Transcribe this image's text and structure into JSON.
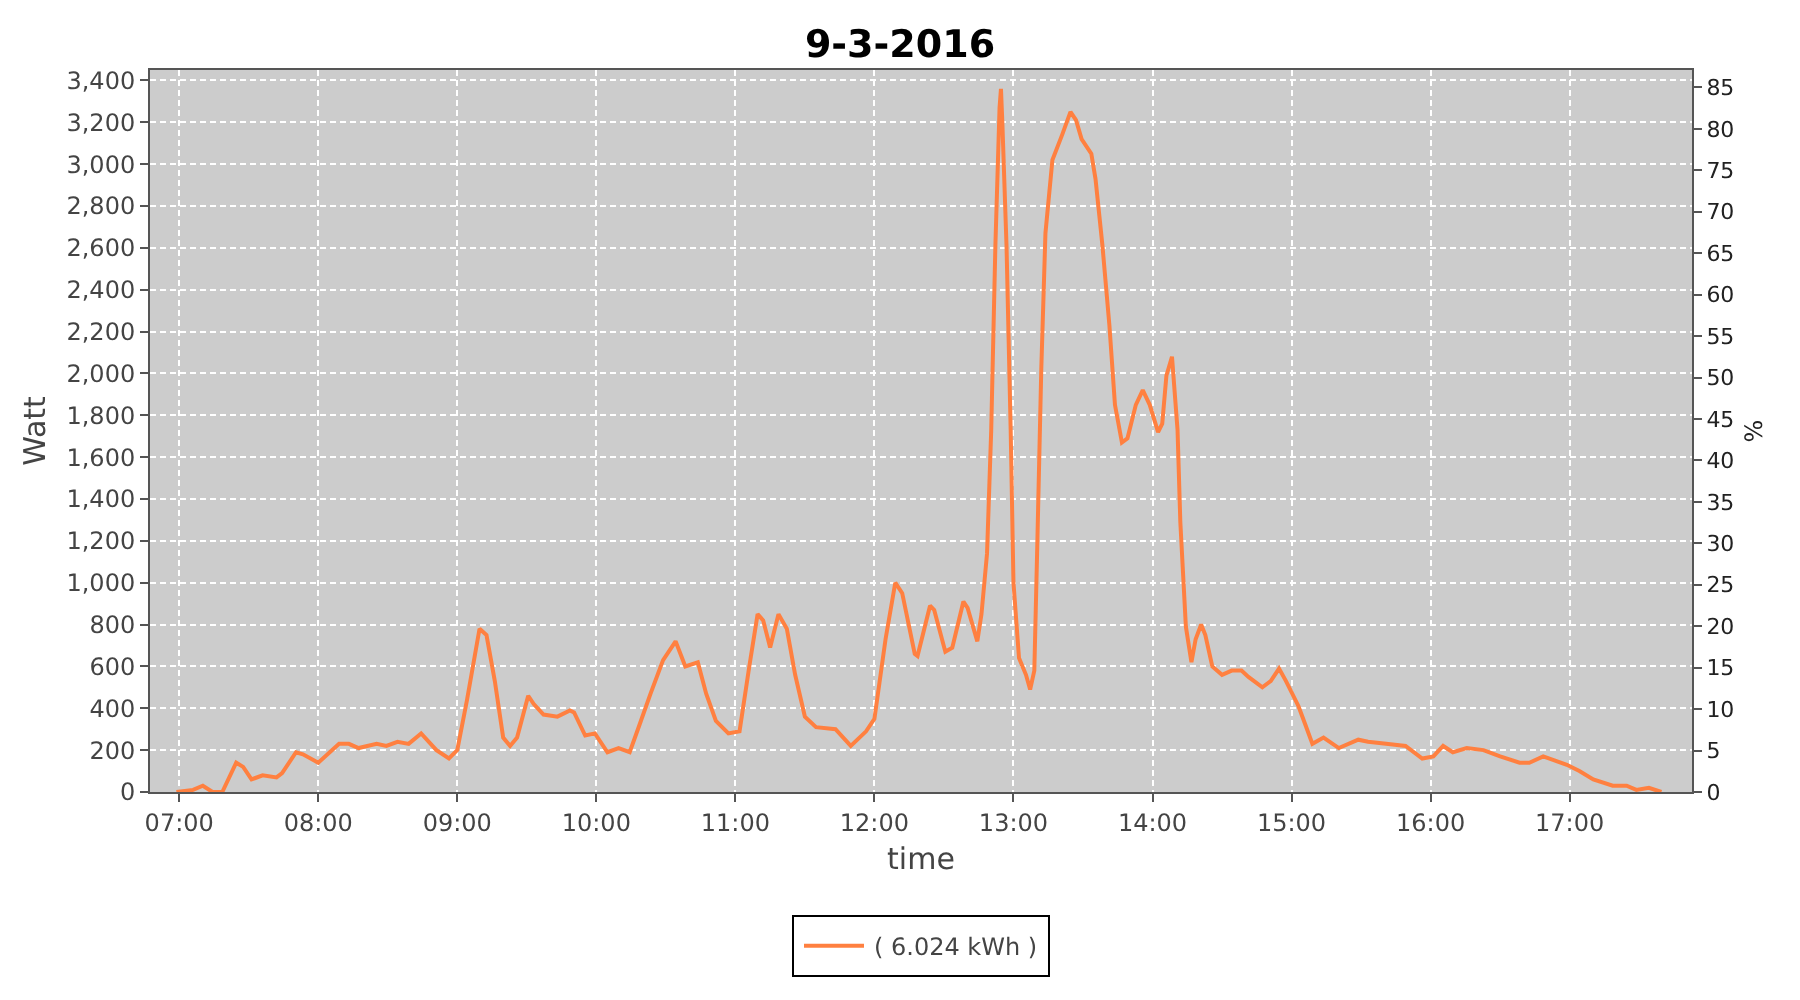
{
  "chart_data": {
    "type": "line",
    "title": "9-3-2016",
    "xlabel": "time",
    "ylabel": "Watt",
    "y2label": "%",
    "xlim": [
      6.79,
      17.88
    ],
    "xticks": [
      {
        "value": 7,
        "label": "07:00"
      },
      {
        "value": 8,
        "label": "08:00"
      },
      {
        "value": 9,
        "label": "09:00"
      },
      {
        "value": 10,
        "label": "10:00"
      },
      {
        "value": 11,
        "label": "11:00"
      },
      {
        "value": 12,
        "label": "12:00"
      },
      {
        "value": 13,
        "label": "13:00"
      },
      {
        "value": 14,
        "label": "14:00"
      },
      {
        "value": 15,
        "label": "15:00"
      },
      {
        "value": 16,
        "label": "16:00"
      },
      {
        "value": 17,
        "label": "17:00"
      }
    ],
    "ylim": [
      0,
      3450
    ],
    "yticks": [
      0,
      200,
      400,
      600,
      800,
      {
        "value": 1000,
        "label": "1,000"
      },
      {
        "value": 1200,
        "label": "1,200"
      },
      {
        "value": 1400,
        "label": "1,400"
      },
      {
        "value": 1600,
        "label": "1,600"
      },
      {
        "value": 1800,
        "label": "1,800"
      },
      {
        "value": 2000,
        "label": "2,000"
      },
      {
        "value": 2200,
        "label": "2,200"
      },
      {
        "value": 2400,
        "label": "2,400"
      },
      {
        "value": 2600,
        "label": "2,600"
      },
      {
        "value": 2800,
        "label": "2,800"
      },
      {
        "value": 3000,
        "label": "3,000"
      },
      {
        "value": 3200,
        "label": "3,200"
      },
      {
        "value": 3400,
        "label": "3,400"
      }
    ],
    "y2lim": [
      0,
      87.1
    ],
    "y2ticks": [
      0,
      5,
      10,
      15,
      20,
      25,
      30,
      35,
      40,
      45,
      50,
      55,
      60,
      65,
      70,
      75,
      80,
      85
    ],
    "grid": true,
    "legend": "bottom",
    "marker": "none",
    "line_style": "solid",
    "series": [
      {
        "name": "( 6.024 kWh )",
        "color": "#ff8040",
        "x": [
          6.98,
          7.1,
          7.17,
          7.24,
          7.31,
          7.41,
          7.46,
          7.52,
          7.6,
          7.7,
          7.74,
          7.84,
          7.89,
          8.0,
          8.15,
          8.22,
          8.29,
          8.42,
          8.49,
          8.57,
          8.65,
          8.74,
          8.85,
          8.94,
          9.0,
          9.07,
          9.16,
          9.21,
          9.27,
          9.33,
          9.38,
          9.43,
          9.51,
          9.55,
          9.62,
          9.72,
          9.81,
          9.84,
          9.92,
          9.99,
          10.08,
          10.16,
          10.24,
          10.31,
          10.39,
          10.48,
          10.57,
          10.64,
          10.73,
          10.79,
          10.86,
          10.95,
          11.03,
          11.1,
          11.16,
          11.2,
          11.25,
          11.31,
          11.37,
          11.43,
          11.5,
          11.58,
          11.72,
          11.83,
          11.94,
          12.0,
          12.08,
          12.15,
          12.2,
          12.29,
          12.31,
          12.4,
          12.43,
          12.51,
          12.56,
          12.64,
          12.67,
          12.74,
          12.77,
          12.81,
          12.84,
          12.87,
          12.9,
          12.91,
          12.92,
          12.95,
          12.98,
          13.0,
          13.04,
          13.09,
          13.12,
          13.15,
          13.17,
          13.2,
          13.23,
          13.28,
          13.35,
          13.41,
          13.45,
          13.49,
          13.56,
          13.59,
          13.64,
          13.69,
          13.73,
          13.78,
          13.82,
          13.88,
          13.93,
          13.98,
          14.04,
          14.07,
          14.1,
          14.14,
          14.18,
          14.2,
          14.24,
          14.28,
          14.31,
          14.35,
          14.38,
          14.43,
          14.5,
          14.57,
          14.64,
          14.69,
          14.79,
          14.85,
          14.91,
          14.96,
          15.05,
          15.1,
          15.15,
          15.23,
          15.34,
          15.48,
          15.55,
          15.68,
          15.82,
          15.94,
          16.02,
          16.09,
          16.16,
          16.26,
          16.38,
          16.5,
          16.64,
          16.71,
          16.81,
          16.98,
          17.07,
          17.17,
          17.31,
          17.41,
          17.48,
          17.57,
          17.66
        ],
        "values": [
          0,
          10,
          30,
          0,
          0,
          140,
          120,
          60,
          80,
          70,
          90,
          190,
          180,
          140,
          230,
          230,
          210,
          230,
          220,
          240,
          230,
          280,
          200,
          160,
          200,
          440,
          780,
          750,
          530,
          260,
          220,
          260,
          460,
          420,
          370,
          360,
          390,
          380,
          270,
          280,
          190,
          210,
          190,
          320,
          470,
          630,
          720,
          600,
          620,
          470,
          340,
          280,
          290,
          600,
          850,
          820,
          690,
          850,
          780,
          560,
          360,
          310,
          300,
          220,
          290,
          350,
          730,
          1000,
          950,
          660,
          650,
          890,
          870,
          670,
          690,
          910,
          880,
          720,
          850,
          1140,
          1730,
          2610,
          3270,
          3360,
          3200,
          2610,
          1730,
          1000,
          640,
          560,
          490,
          580,
          1140,
          2020,
          2670,
          3020,
          3140,
          3250,
          3210,
          3120,
          3050,
          2930,
          2610,
          2230,
          1850,
          1670,
          1690,
          1850,
          1920,
          1850,
          1720,
          1760,
          1990,
          2080,
          1730,
          1290,
          790,
          620,
          730,
          800,
          750,
          600,
          560,
          580,
          580,
          550,
          500,
          530,
          590,
          530,
          410,
          320,
          230,
          260,
          210,
          250,
          240,
          230,
          220,
          160,
          170,
          220,
          190,
          210,
          200,
          170,
          140,
          140,
          170,
          130,
          100,
          60,
          30,
          30,
          10,
          20,
          0
        ]
      }
    ]
  }
}
